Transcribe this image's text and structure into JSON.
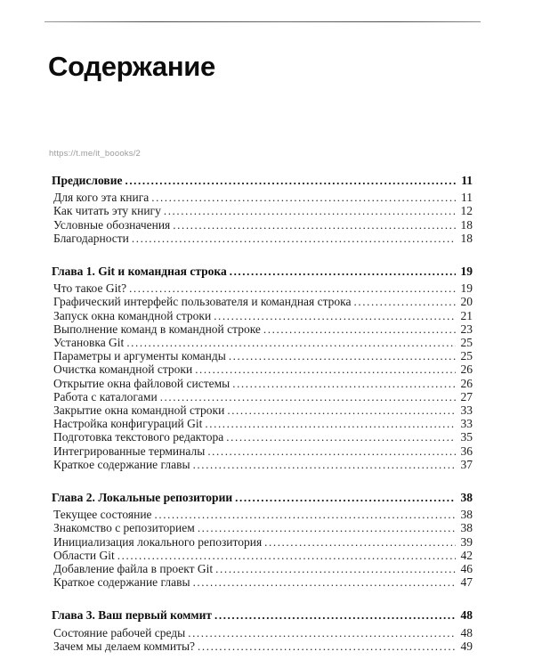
{
  "page": {
    "title": "Содержание",
    "watermark_url": "https://t.me/it_boooks/2"
  },
  "toc": {
    "sections": [
      {
        "heading": {
          "label": "Предисловие",
          "page": "11"
        },
        "entries": [
          {
            "label": "Для кого эта книга",
            "page": "11"
          },
          {
            "label": "Как читать эту книгу",
            "page": "12"
          },
          {
            "label": "Условные обозначения",
            "page": "18"
          },
          {
            "label": "Благодарности",
            "page": "18"
          }
        ]
      },
      {
        "heading": {
          "label": "Глава 1. Git и командная строка",
          "page": "19"
        },
        "entries": [
          {
            "label": "Что такое Git?",
            "page": "19"
          },
          {
            "label": "Графический интерфейс пользователя и командная строка",
            "page": "20"
          },
          {
            "label": "Запуск окна командной строки",
            "page": "21"
          },
          {
            "label": "Выполнение команд в командной строке",
            "page": "23"
          },
          {
            "label": "Установка Git",
            "page": "25"
          },
          {
            "label": "Параметры и аргументы команды",
            "page": "25"
          },
          {
            "label": "Очистка командной строки",
            "page": "26"
          },
          {
            "label": "Открытие окна файловой системы",
            "page": "26"
          },
          {
            "label": "Работа с каталогами",
            "page": "27"
          },
          {
            "label": "Закрытие окна командной строки",
            "page": "33"
          },
          {
            "label": "Настройка конфигураций Git",
            "page": "33"
          },
          {
            "label": "Подготовка текстового редактора",
            "page": "35"
          },
          {
            "label": "Интегрированные терминалы",
            "page": "36"
          },
          {
            "label": "Краткое содержание главы",
            "page": "37"
          }
        ]
      },
      {
        "heading": {
          "label": "Глава 2. Локальные репозитории",
          "page": "38"
        },
        "entries": [
          {
            "label": "Текущее состояние",
            "page": "38"
          },
          {
            "label": "Знакомство с репозиторием",
            "page": "38"
          },
          {
            "label": "Инициализация локального репозитория",
            "page": "39"
          },
          {
            "label": "Области Git",
            "page": "42"
          },
          {
            "label": "Добавление файла в проект Git",
            "page": "46"
          },
          {
            "label": "Краткое содержание главы",
            "page": "47"
          }
        ]
      },
      {
        "heading": {
          "label": "Глава 3. Ваш первый коммит",
          "page": "48"
        },
        "entries": [
          {
            "label": "Состояние рабочей среды",
            "page": "48"
          },
          {
            "label": "Зачем мы делаем коммиты?",
            "page": "49"
          }
        ]
      }
    ]
  }
}
